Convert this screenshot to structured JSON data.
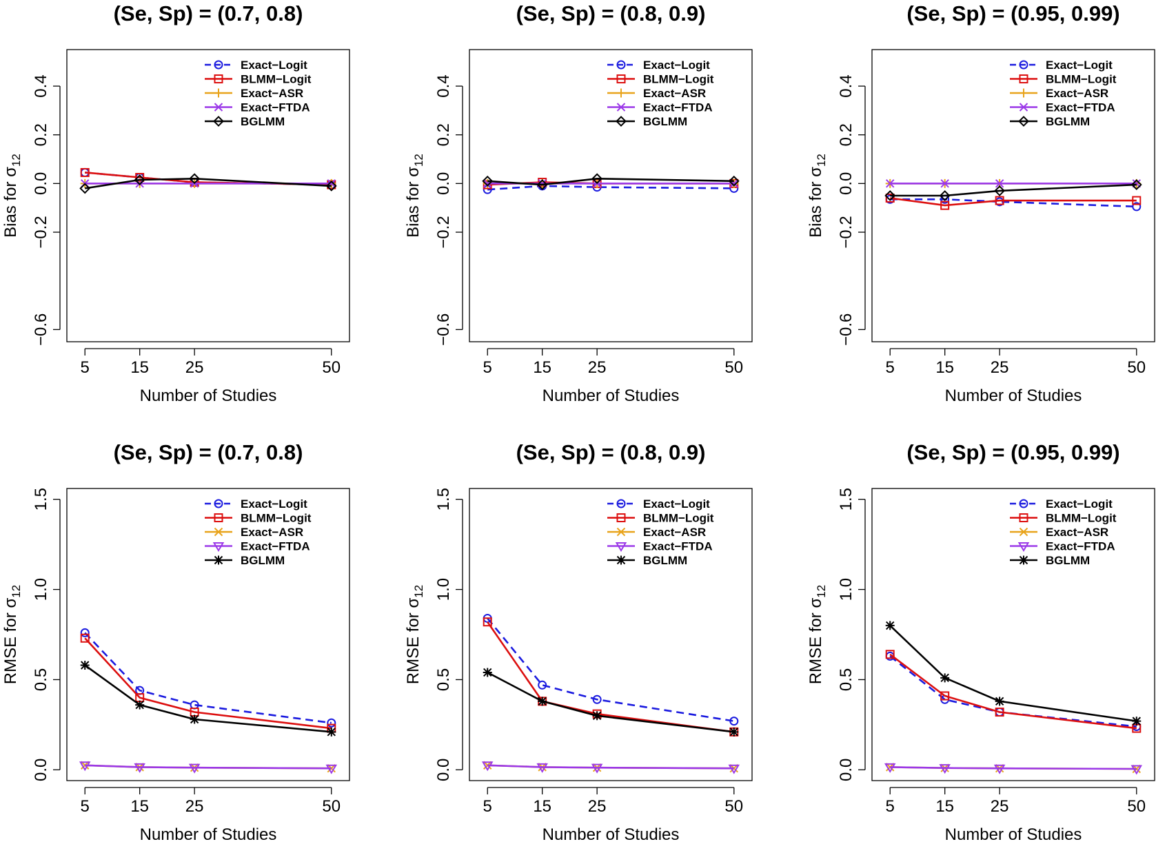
{
  "figure": {
    "description": "3x2 grid of line charts: top row bias, bottom row RMSE for sigma_12"
  },
  "chart_data": [
    {
      "type": "line",
      "panel": "top-left",
      "title": "(Se, Sp) = (0.7, 0.8)",
      "xlabel": "Number of Studies",
      "ylabel_main": "Bias for σ",
      "ylabel_sub": "12",
      "x": [
        5,
        15,
        25,
        50
      ],
      "xticks": [
        "5",
        "15",
        "25",
        "50"
      ],
      "ylim": [
        -0.65,
        0.55
      ],
      "yticks": [
        -0.6,
        -0.2,
        0.0,
        0.2,
        0.4
      ],
      "ytick_labels": [
        "−0.6",
        "−0.2",
        "0.0",
        "0.2",
        "0.4"
      ],
      "legend_position": "top-right",
      "series": [
        {
          "name": "Exact−Logit",
          "values": [
            0.045,
            0.025,
            0.005,
            -0.005
          ]
        },
        {
          "name": "BLMM−Logit",
          "values": [
            0.045,
            0.025,
            0.005,
            -0.005
          ]
        },
        {
          "name": "Exact−ASR",
          "values": [
            0.0,
            0.0,
            0.0,
            0.0
          ]
        },
        {
          "name": "Exact−FTDA",
          "values": [
            0.0,
            0.0,
            0.0,
            0.0
          ]
        },
        {
          "name": "BGLMM",
          "values": [
            -0.02,
            0.015,
            0.02,
            -0.01
          ]
        }
      ]
    },
    {
      "type": "line",
      "panel": "top-middle",
      "title": "(Se, Sp) = (0.8, 0.9)",
      "xlabel": "Number of Studies",
      "ylabel_main": "Bias for σ",
      "ylabel_sub": "12",
      "x": [
        5,
        15,
        25,
        50
      ],
      "xticks": [
        "5",
        "15",
        "25",
        "50"
      ],
      "ylim": [
        -0.65,
        0.55
      ],
      "yticks": [
        -0.6,
        -0.2,
        0.0,
        0.2,
        0.4
      ],
      "ytick_labels": [
        "−0.6",
        "−0.2",
        "0.0",
        "0.2",
        "0.4"
      ],
      "legend_position": "top-right",
      "series": [
        {
          "name": "Exact−Logit",
          "values": [
            -0.025,
            -0.01,
            -0.015,
            -0.02
          ]
        },
        {
          "name": "BLMM−Logit",
          "values": [
            -0.005,
            0.005,
            0.0,
            0.0
          ]
        },
        {
          "name": "Exact−ASR",
          "values": [
            0.0,
            0.0,
            0.0,
            0.0
          ]
        },
        {
          "name": "Exact−FTDA",
          "values": [
            0.0,
            0.0,
            0.0,
            0.0
          ]
        },
        {
          "name": "BGLMM",
          "values": [
            0.01,
            -0.005,
            0.02,
            0.01
          ]
        }
      ]
    },
    {
      "type": "line",
      "panel": "top-right",
      "title": "(Se, Sp) = (0.95, 0.99)",
      "xlabel": "Number of Studies",
      "ylabel_main": "Bias for σ",
      "ylabel_sub": "12",
      "x": [
        5,
        15,
        25,
        50
      ],
      "xticks": [
        "5",
        "15",
        "25",
        "50"
      ],
      "ylim": [
        -0.65,
        0.55
      ],
      "yticks": [
        -0.6,
        -0.2,
        0.0,
        0.2,
        0.4
      ],
      "ytick_labels": [
        "−0.6",
        "−0.2",
        "0.0",
        "0.2",
        "0.4"
      ],
      "legend_position": "top-right",
      "series": [
        {
          "name": "Exact−Logit",
          "values": [
            -0.065,
            -0.065,
            -0.075,
            -0.095
          ]
        },
        {
          "name": "BLMM−Logit",
          "values": [
            -0.06,
            -0.09,
            -0.07,
            -0.07
          ]
        },
        {
          "name": "Exact−ASR",
          "values": [
            0.0,
            0.0,
            0.0,
            0.0
          ]
        },
        {
          "name": "Exact−FTDA",
          "values": [
            0.0,
            0.0,
            0.0,
            0.0
          ]
        },
        {
          "name": "BGLMM",
          "values": [
            -0.05,
            -0.05,
            -0.03,
            -0.005
          ]
        }
      ]
    },
    {
      "type": "line",
      "panel": "bottom-left",
      "title": "(Se, Sp) = (0.7, 0.8)",
      "xlabel": "Number of Studies",
      "ylabel_main": "RMSE for σ",
      "ylabel_sub": "12",
      "x": [
        5,
        15,
        25,
        50
      ],
      "xticks": [
        "5",
        "15",
        "25",
        "50"
      ],
      "ylim": [
        -0.06,
        1.56
      ],
      "yticks": [
        0.0,
        0.5,
        1.0,
        1.5
      ],
      "ytick_labels": [
        "0.0",
        "0.5",
        "1.0",
        "1.5"
      ],
      "legend_position": "top-right",
      "series": [
        {
          "name": "Exact−Logit",
          "values": [
            0.76,
            0.44,
            0.36,
            0.26
          ]
        },
        {
          "name": "BLMM−Logit",
          "values": [
            0.73,
            0.4,
            0.32,
            0.23
          ]
        },
        {
          "name": "Exact−ASR",
          "values": [
            0.025,
            0.015,
            0.012,
            0.008
          ]
        },
        {
          "name": "Exact−FTDA",
          "values": [
            0.025,
            0.015,
            0.012,
            0.008
          ]
        },
        {
          "name": "BGLMM",
          "values": [
            0.58,
            0.36,
            0.28,
            0.21
          ]
        }
      ]
    },
    {
      "type": "line",
      "panel": "bottom-middle",
      "title": "(Se, Sp) = (0.8, 0.9)",
      "xlabel": "Number of Studies",
      "ylabel_main": "RMSE for σ",
      "ylabel_sub": "12",
      "x": [
        5,
        15,
        25,
        50
      ],
      "xticks": [
        "5",
        "15",
        "25",
        "50"
      ],
      "ylim": [
        -0.06,
        1.56
      ],
      "yticks": [
        0.0,
        0.5,
        1.0,
        1.5
      ],
      "ytick_labels": [
        "0.0",
        "0.5",
        "1.0",
        "1.5"
      ],
      "legend_position": "top-right",
      "series": [
        {
          "name": "Exact−Logit",
          "values": [
            0.84,
            0.47,
            0.39,
            0.27
          ]
        },
        {
          "name": "BLMM−Logit",
          "values": [
            0.82,
            0.38,
            0.31,
            0.21
          ]
        },
        {
          "name": "Exact−ASR",
          "values": [
            0.025,
            0.015,
            0.012,
            0.008
          ]
        },
        {
          "name": "Exact−FTDA",
          "values": [
            0.025,
            0.015,
            0.012,
            0.008
          ]
        },
        {
          "name": "BGLMM",
          "values": [
            0.54,
            0.38,
            0.3,
            0.21
          ]
        }
      ]
    },
    {
      "type": "line",
      "panel": "bottom-right",
      "title": "(Se, Sp) = (0.95, 0.99)",
      "xlabel": "Number of Studies",
      "ylabel_main": "RMSE for σ",
      "ylabel_sub": "12",
      "x": [
        5,
        15,
        25,
        50
      ],
      "xticks": [
        "5",
        "15",
        "25",
        "50"
      ],
      "ylim": [
        -0.06,
        1.56
      ],
      "yticks": [
        0.0,
        0.5,
        1.0,
        1.5
      ],
      "ytick_labels": [
        "0.0",
        "0.5",
        "1.0",
        "1.5"
      ],
      "legend_position": "top-right",
      "series": [
        {
          "name": "Exact−Logit",
          "values": [
            0.63,
            0.39,
            0.32,
            0.24
          ]
        },
        {
          "name": "BLMM−Logit",
          "values": [
            0.64,
            0.41,
            0.32,
            0.23
          ]
        },
        {
          "name": "Exact−ASR",
          "values": [
            0.015,
            0.01,
            0.008,
            0.005
          ]
        },
        {
          "name": "Exact−FTDA",
          "values": [
            0.015,
            0.01,
            0.008,
            0.005
          ]
        },
        {
          "name": "BGLMM",
          "values": [
            0.8,
            0.51,
            0.38,
            0.27
          ]
        }
      ]
    }
  ],
  "styles": {
    "Exact−Logit": {
      "color": "#1a1adf",
      "dash": true,
      "marker": "circle"
    },
    "BLMM−Logit": {
      "color": "#dc0f0f",
      "dash": false,
      "marker": "square"
    },
    "Exact−ASR": {
      "color": "#e8a31a",
      "dash": false,
      "marker": "plus"
    },
    "Exact−FTDA": {
      "color": "#9b38e8",
      "dash": false,
      "marker": "x"
    },
    "BGLMM": {
      "color": "#000000",
      "dash": false,
      "marker": "diamond"
    }
  },
  "rmse_markers": {
    "Exact−Logit": "circle",
    "BLMM−Logit": "square",
    "Exact−ASR": "x",
    "Exact−FTDA": "triangle-down",
    "BGLMM": "asterisk"
  }
}
